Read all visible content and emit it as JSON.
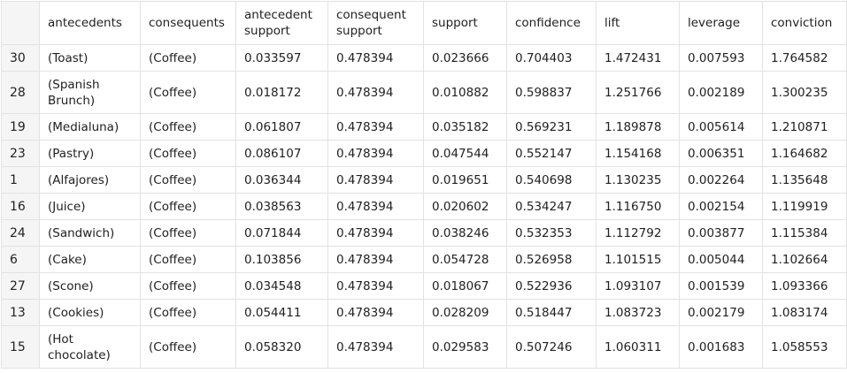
{
  "table": {
    "columns": [
      "antecedents",
      "consequents",
      "antecedent support",
      "consequent support",
      "support",
      "confidence",
      "lift",
      "leverage",
      "conviction"
    ],
    "rows": [
      {
        "index": "30",
        "cells": [
          "(Toast)",
          "(Coffee)",
          "0.033597",
          "0.478394",
          "0.023666",
          "0.704403",
          "1.472431",
          "0.007593",
          "1.764582"
        ]
      },
      {
        "index": "28",
        "cells": [
          "(Spanish Brunch)",
          "(Coffee)",
          "0.018172",
          "0.478394",
          "0.010882",
          "0.598837",
          "1.251766",
          "0.002189",
          "1.300235"
        ]
      },
      {
        "index": "19",
        "cells": [
          "(Medialuna)",
          "(Coffee)",
          "0.061807",
          "0.478394",
          "0.035182",
          "0.569231",
          "1.189878",
          "0.005614",
          "1.210871"
        ]
      },
      {
        "index": "23",
        "cells": [
          "(Pastry)",
          "(Coffee)",
          "0.086107",
          "0.478394",
          "0.047544",
          "0.552147",
          "1.154168",
          "0.006351",
          "1.164682"
        ]
      },
      {
        "index": "1",
        "cells": [
          "(Alfajores)",
          "(Coffee)",
          "0.036344",
          "0.478394",
          "0.019651",
          "0.540698",
          "1.130235",
          "0.002264",
          "1.135648"
        ]
      },
      {
        "index": "16",
        "cells": [
          "(Juice)",
          "(Coffee)",
          "0.038563",
          "0.478394",
          "0.020602",
          "0.534247",
          "1.116750",
          "0.002154",
          "1.119919"
        ]
      },
      {
        "index": "24",
        "cells": [
          "(Sandwich)",
          "(Coffee)",
          "0.071844",
          "0.478394",
          "0.038246",
          "0.532353",
          "1.112792",
          "0.003877",
          "1.115384"
        ]
      },
      {
        "index": "6",
        "cells": [
          "(Cake)",
          "(Coffee)",
          "0.103856",
          "0.478394",
          "0.054728",
          "0.526958",
          "1.101515",
          "0.005044",
          "1.102664"
        ]
      },
      {
        "index": "27",
        "cells": [
          "(Scone)",
          "(Coffee)",
          "0.034548",
          "0.478394",
          "0.018067",
          "0.522936",
          "1.093107",
          "0.001539",
          "1.093366"
        ]
      },
      {
        "index": "13",
        "cells": [
          "(Cookies)",
          "(Coffee)",
          "0.054411",
          "0.478394",
          "0.028209",
          "0.518447",
          "1.083723",
          "0.002179",
          "1.083174"
        ]
      },
      {
        "index": "15",
        "cells": [
          "(Hot chocolate)",
          "(Coffee)",
          "0.058320",
          "0.478394",
          "0.029583",
          "0.507246",
          "1.060311",
          "0.001683",
          "1.058553"
        ]
      }
    ]
  },
  "colors": {
    "index_background": "#f5f5f5",
    "grid_line": "#e2e2e2",
    "text": "#212121"
  }
}
